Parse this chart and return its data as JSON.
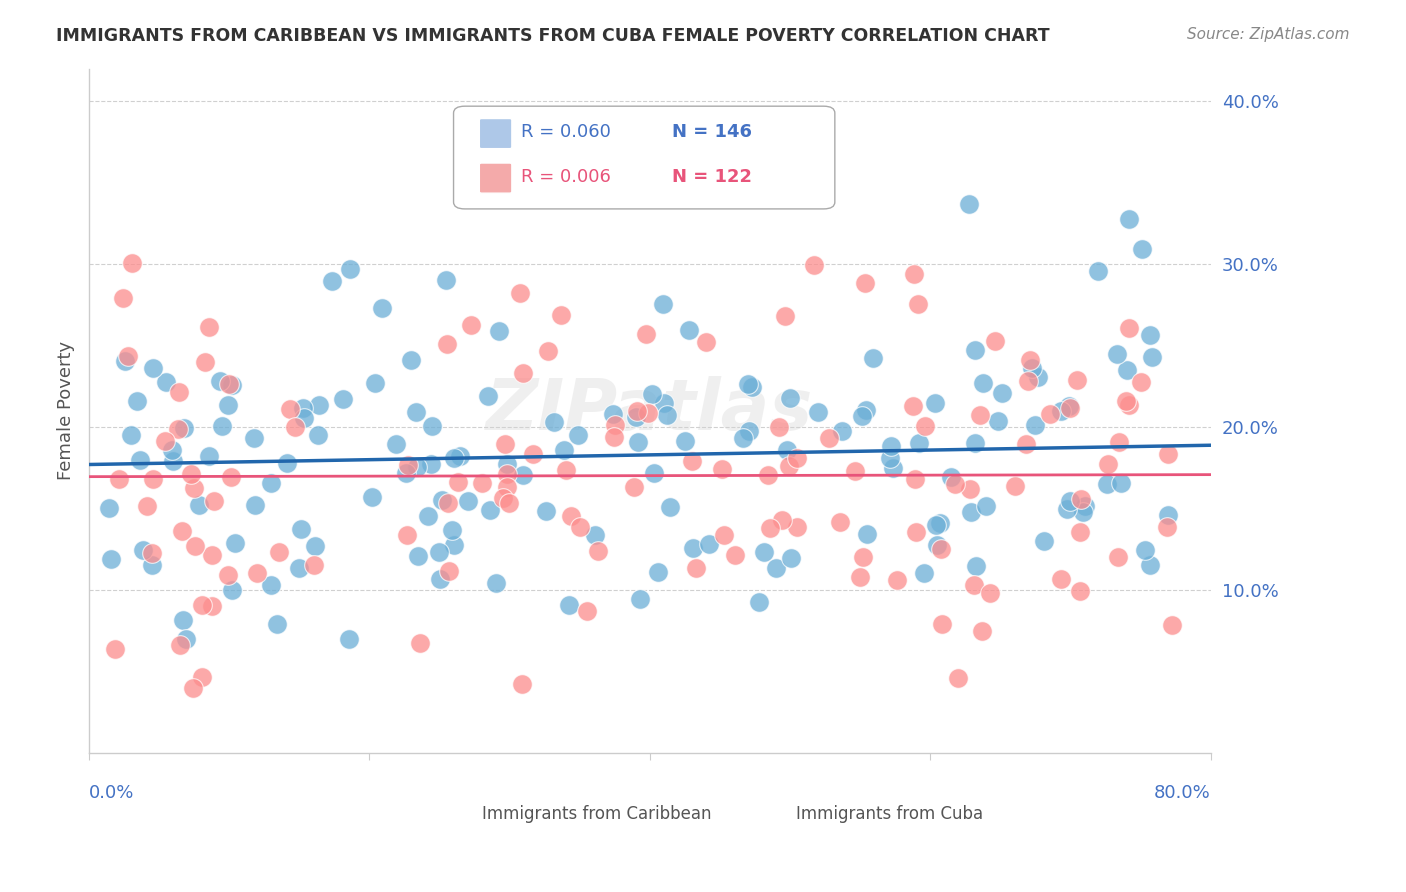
{
  "title": "IMMIGRANTS FROM CARIBBEAN VS IMMIGRANTS FROM CUBA FEMALE POVERTY CORRELATION CHART",
  "source": "Source: ZipAtlas.com",
  "ylabel": "Female Poverty",
  "xlim": [
    0.0,
    0.8
  ],
  "ylim": [
    0.0,
    0.42
  ],
  "series1_color": "#6baed6",
  "series2_color": "#fc8d8d",
  "trendline1_color": "#2166ac",
  "trendline2_color": "#e8547a",
  "background_color": "#ffffff",
  "grid_color": "#d0d0d0",
  "watermark": "ZIPatlas",
  "n1": 146,
  "n2": 122,
  "r1": 0.06,
  "r2": 0.006,
  "seed": 42
}
